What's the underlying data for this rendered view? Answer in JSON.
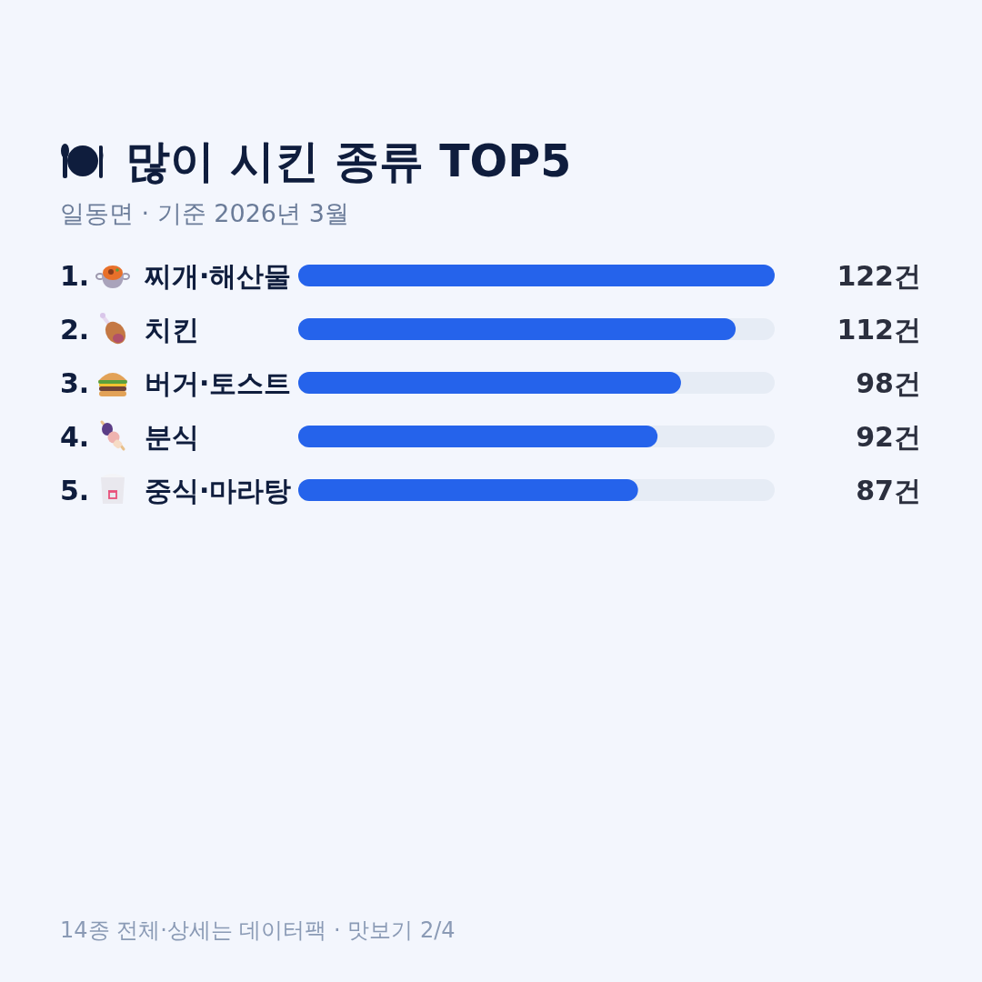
{
  "chart_data": {
    "type": "bar",
    "orientation": "horizontal",
    "title": "많이 시킨 종류 TOP5",
    "subtitle": "일동면 · 기준 2026년 3월",
    "categories": [
      "1. 찌개·해산물",
      "2. 치킨",
      "3. 버거·토스트",
      "4. 분식",
      "5. 중식·마라탕"
    ],
    "values": [
      122,
      112,
      98,
      92,
      87
    ],
    "value_labels": [
      "122건",
      "112건",
      "98건",
      "92건",
      "87건"
    ],
    "color": "#2563eb",
    "xlim": [
      0,
      122
    ],
    "tick_labels": "y",
    "annotations": [
      "14종 전체·상세는 데이터팩 · 맛보기 2/4"
    ]
  }
}
